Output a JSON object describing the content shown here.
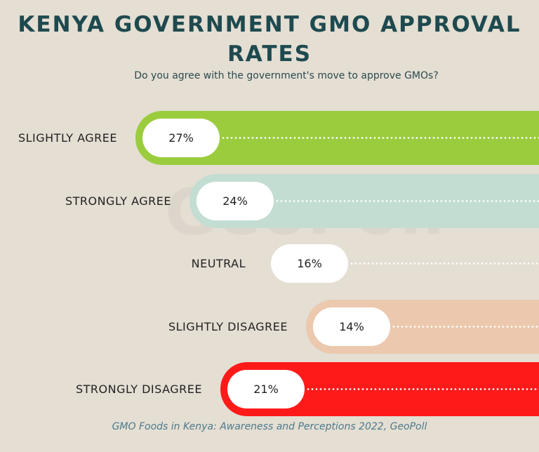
{
  "chart_data": {
    "type": "bar",
    "orientation": "horizontal",
    "title": "KENYA GOVERNMENT GMO APPROVAL RATES",
    "subtitle": "Do you agree with the government's move to approve GMOs?",
    "categories": [
      "SLIGHTLY AGREE",
      "STRONGLY AGREE",
      "NEUTRAL",
      "SLIGHTLY DISAGREE",
      "STRONGLY DISAGREE"
    ],
    "values": [
      27,
      24,
      16,
      14,
      21
    ],
    "data_labels": [
      "27%",
      "24%",
      "16%",
      "14%",
      "21%"
    ],
    "colors": [
      "#9bcc3e",
      "#c3ddd2",
      "#e4ded3",
      "#ecc9ae",
      "#ff1a1a"
    ],
    "source": "GMO Foods in Kenya: Awareness and Perceptions 2022, GeoPoll",
    "watermark": "GeoPoll",
    "grid": false
  }
}
